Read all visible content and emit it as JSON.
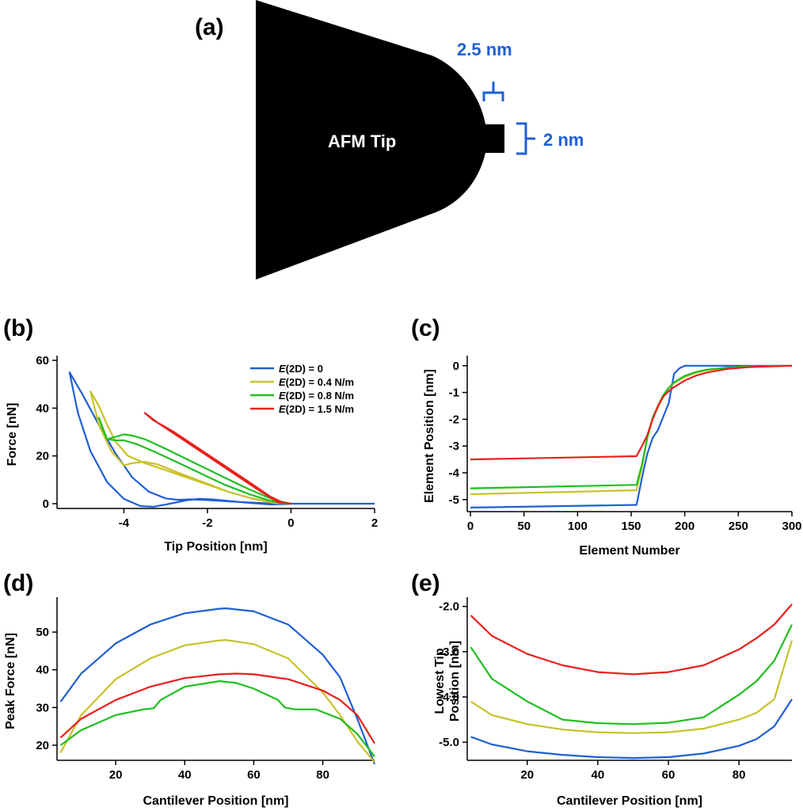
{
  "colors": {
    "blue": "#1f5fd6",
    "yellow": "#c8c22a",
    "green": "#1fbf1f",
    "red": "#e8201c",
    "dim": "#1f5fd6"
  },
  "panel_a": {
    "label": "(a)",
    "tip_label": "AFM Tip",
    "width_label": "2.5 nm",
    "height_label": "2 nm"
  },
  "chart_data": [
    {
      "panel": "(b)",
      "type": "line",
      "xlabel": "Tip Position [nm]",
      "ylabel": "Force [nN]",
      "xlim": [
        -5.6,
        2.0
      ],
      "ylim": [
        -2,
        60
      ],
      "xticks": [
        -4,
        -2,
        0,
        2
      ],
      "xtick_labels": [
        "-4",
        "-2",
        "0",
        "2"
      ],
      "yticks": [
        0,
        20,
        40,
        60
      ],
      "ytick_labels": [
        "0",
        "20",
        "40",
        "60"
      ],
      "legend_position": "top-right",
      "legend": [
        {
          "prefix": "E",
          "text": "(2D) = 0",
          "color": "#1f5fd6"
        },
        {
          "prefix": "E",
          "text": "(2D) = 0.4 N/m",
          "color": "#c8c22a"
        },
        {
          "prefix": "E",
          "text": "(2D) = 0.8 N/m",
          "color": "#1fbf1f"
        },
        {
          "prefix": "E",
          "text": "(2D) = 1.5 N/m",
          "color": "#e8201c"
        }
      ],
      "series": [
        {
          "color": "#1f5fd6",
          "x": [
            2.0,
            1.0,
            0.0,
            -0.2,
            -0.5,
            -0.9,
            -1.4,
            -1.9,
            -2.2,
            -2.5,
            -2.9,
            -3.3,
            -3.6,
            -4.0,
            -4.4,
            -4.8,
            -5.1,
            -5.3,
            -5.0,
            -4.6,
            -4.2,
            -3.8,
            -3.4,
            -3.0,
            -2.7,
            -2.4,
            -2.0,
            -1.5,
            -1.0,
            -0.6,
            -0.3,
            0.0
          ],
          "y": [
            0,
            0,
            0,
            -0.2,
            -0.3,
            0.2,
            1.0,
            1.8,
            2.0,
            1.4,
            0.0,
            -1.3,
            -1.0,
            2.0,
            9.0,
            22.0,
            38.0,
            55.0,
            46.0,
            33.0,
            21.0,
            11.0,
            5.0,
            2.2,
            1.6,
            1.8,
            1.5,
            1.0,
            0.5,
            0.2,
            0.0,
            0.0
          ]
        },
        {
          "color": "#c8c22a",
          "x": [
            0.0,
            -0.4,
            -0.9,
            -1.5,
            -2.1,
            -2.7,
            -3.2,
            -3.5,
            -3.8,
            -4.0,
            -4.3,
            -4.6,
            -4.8,
            -4.6,
            -4.4,
            -4.2,
            -3.9,
            -3.5,
            -3.0,
            -2.5,
            -2.0,
            -1.5,
            -1.0,
            -0.5,
            -0.2,
            0.0
          ],
          "y": [
            0.0,
            0.3,
            2.0,
            5.0,
            9.0,
            13.0,
            16.5,
            17.5,
            17.0,
            16.0,
            22.0,
            33.0,
            47.0,
            41.0,
            33.0,
            26.0,
            20.0,
            17.0,
            14.0,
            11.0,
            8.0,
            5.0,
            2.5,
            0.8,
            0.2,
            0.0
          ]
        },
        {
          "color": "#1fbf1f",
          "x": [
            0.0,
            -0.4,
            -1.0,
            -1.6,
            -2.3,
            -3.0,
            -3.5,
            -3.8,
            -4.0,
            -4.2,
            -4.4,
            -4.6,
            -4.5,
            -4.4,
            -4.2,
            -4.0,
            -3.7,
            -3.3,
            -2.8,
            -2.2,
            -1.6,
            -1.0,
            -0.5,
            -0.2,
            0.0
          ],
          "y": [
            0.0,
            1.5,
            6.0,
            11.0,
            17.0,
            23.0,
            27.0,
            28.5,
            29.0,
            28.0,
            27.0,
            36.0,
            31.0,
            27.0,
            26.5,
            26.5,
            25.0,
            22.0,
            18.0,
            13.0,
            8.0,
            4.0,
            1.2,
            0.2,
            0.0
          ]
        },
        {
          "color": "#e8201c",
          "x": [
            0.0,
            -0.3,
            -0.8,
            -1.4,
            -2.0,
            -2.6,
            -3.2,
            -3.5,
            -3.3,
            -2.8,
            -2.2,
            -1.6,
            -1.0,
            -0.5,
            -0.2,
            0.0
          ],
          "y": [
            0.0,
            0.5,
            6.0,
            13.0,
            20.0,
            27.0,
            34.0,
            38.0,
            35.0,
            30.0,
            23.0,
            16.0,
            9.0,
            3.0,
            0.5,
            0.0
          ]
        }
      ]
    },
    {
      "panel": "(c)",
      "type": "line",
      "xlabel": "Element Number",
      "ylabel": "Element Position [nm]",
      "xlim": [
        -3,
        300
      ],
      "ylim": [
        -5.45,
        0.2
      ],
      "xticks": [
        0,
        50,
        100,
        150,
        200,
        250,
        300
      ],
      "xtick_labels": [
        "0",
        "50",
        "100",
        "150",
        "200",
        "250",
        "300"
      ],
      "yticks": [
        0,
        -1,
        -2,
        -3,
        -4,
        -5
      ],
      "ytick_labels": [
        "0",
        "-1",
        "-2",
        "-3",
        "-4",
        "-5"
      ],
      "series": [
        {
          "color": "#1f5fd6",
          "x": [
            0,
            155,
            160,
            165,
            170,
            175,
            180,
            185,
            190,
            195,
            200,
            205,
            220,
            250,
            300
          ],
          "y": [
            -5.3,
            -5.2,
            -4.2,
            -3.3,
            -2.7,
            -2.4,
            -1.9,
            -1.4,
            -0.3,
            -0.1,
            0,
            0,
            0,
            0,
            0
          ]
        },
        {
          "color": "#c8c22a",
          "x": [
            0,
            155,
            160,
            165,
            170,
            175,
            180,
            185,
            190,
            200,
            210,
            220,
            240,
            260,
            300
          ],
          "y": [
            -4.8,
            -4.65,
            -3.8,
            -2.7,
            -2.0,
            -1.55,
            -1.15,
            -0.85,
            -0.65,
            -0.42,
            -0.27,
            -0.17,
            -0.08,
            -0.03,
            0
          ]
        },
        {
          "color": "#1fbf1f",
          "x": [
            0,
            155,
            160,
            165,
            170,
            175,
            180,
            185,
            190,
            200,
            210,
            220,
            240,
            260,
            300
          ],
          "y": [
            -4.58,
            -4.45,
            -3.7,
            -2.7,
            -1.95,
            -1.5,
            -1.1,
            -0.82,
            -0.62,
            -0.38,
            -0.24,
            -0.15,
            -0.07,
            -0.03,
            0
          ]
        },
        {
          "color": "#e8201c",
          "x": [
            0,
            155,
            160,
            165,
            170,
            175,
            180,
            185,
            190,
            200,
            210,
            220,
            240,
            260,
            300
          ],
          "y": [
            -3.5,
            -3.38,
            -3.0,
            -2.6,
            -2.0,
            -1.5,
            -1.15,
            -0.95,
            -0.8,
            -0.55,
            -0.38,
            -0.26,
            -0.12,
            -0.05,
            0
          ]
        }
      ]
    },
    {
      "panel": "(d)",
      "type": "line",
      "xlabel": "Cantilever Position [nm]",
      "ylabel": "Peak Force [nN]",
      "xlim": [
        3,
        95
      ],
      "ylim": [
        16,
        58
      ],
      "xticks": [
        20,
        40,
        60,
        80
      ],
      "xtick_labels": [
        "20",
        "40",
        "60",
        "80"
      ],
      "yticks": [
        20,
        30,
        40,
        50
      ],
      "ytick_labels": [
        "20",
        "30",
        "40",
        "50"
      ],
      "series": [
        {
          "color": "#1f5fd6",
          "x": [
            4,
            10,
            20,
            30,
            40,
            50,
            52,
            60,
            70,
            80,
            85,
            90,
            95
          ],
          "y": [
            31.5,
            39.0,
            47.0,
            52.0,
            55.0,
            56.2,
            56.3,
            55.5,
            52.0,
            44.0,
            38.0,
            27.0,
            15.0
          ]
        },
        {
          "color": "#c8c22a",
          "x": [
            4,
            10,
            20,
            30,
            40,
            50,
            52,
            60,
            70,
            80,
            85,
            90,
            95
          ],
          "y": [
            18.0,
            28.0,
            37.5,
            43.0,
            46.5,
            47.8,
            47.9,
            46.8,
            43.0,
            34.0,
            28.0,
            21.0,
            15.5
          ]
        },
        {
          "color": "#1fbf1f",
          "x": [
            4,
            10,
            20,
            28,
            31,
            33,
            40,
            50,
            55,
            60,
            67,
            69,
            72,
            78,
            85,
            90,
            95
          ],
          "y": [
            20.0,
            24.0,
            28.0,
            29.5,
            29.8,
            32.0,
            35.5,
            37.0,
            36.5,
            35.0,
            32.0,
            30.0,
            29.5,
            29.5,
            27.0,
            23.0,
            17.0
          ]
        },
        {
          "color": "#e8201c",
          "x": [
            4,
            10,
            20,
            30,
            40,
            50,
            55,
            60,
            70,
            80,
            85,
            90,
            95
          ],
          "y": [
            22.0,
            27.0,
            32.0,
            35.5,
            37.8,
            38.8,
            39.0,
            38.8,
            37.5,
            34.5,
            32.0,
            28.0,
            20.5
          ]
        }
      ]
    },
    {
      "panel": "(e)",
      "type": "line",
      "xlabel": "Cantilever Position [nm]",
      "ylabel": "Lowest Tip Position [nm]",
      "ylabel_lines": [
        "Lowest Tip",
        "Position [nm]"
      ],
      "xlim": [
        3,
        95
      ],
      "ylim": [
        -5.4,
        -1.9
      ],
      "xticks": [
        20,
        40,
        60,
        80
      ],
      "xtick_labels": [
        "20",
        "40",
        "60",
        "80"
      ],
      "yticks": [
        -2.0,
        -3.0,
        -4.0,
        -5.0
      ],
      "ytick_labels": [
        "-2.0",
        "-3.0",
        "-4.0",
        "-5.0"
      ],
      "series": [
        {
          "color": "#e8201c",
          "x": [
            4,
            10,
            20,
            30,
            40,
            50,
            60,
            70,
            80,
            85,
            90,
            95
          ],
          "y": [
            -2.2,
            -2.65,
            -3.05,
            -3.3,
            -3.45,
            -3.5,
            -3.45,
            -3.3,
            -2.95,
            -2.7,
            -2.4,
            -1.95
          ]
        },
        {
          "color": "#1fbf1f",
          "x": [
            4,
            10,
            20,
            30,
            40,
            50,
            60,
            70,
            75,
            80,
            85,
            90,
            95
          ],
          "y": [
            -2.9,
            -3.6,
            -4.1,
            -4.5,
            -4.58,
            -4.6,
            -4.57,
            -4.45,
            -4.2,
            -3.95,
            -3.65,
            -3.2,
            -2.4
          ]
        },
        {
          "color": "#c8c22a",
          "x": [
            4,
            10,
            20,
            30,
            40,
            50,
            60,
            70,
            80,
            85,
            90,
            95
          ],
          "y": [
            -4.1,
            -4.4,
            -4.6,
            -4.72,
            -4.78,
            -4.8,
            -4.78,
            -4.7,
            -4.5,
            -4.35,
            -4.05,
            -2.75
          ]
        },
        {
          "color": "#1f5fd6",
          "x": [
            4,
            10,
            20,
            30,
            40,
            50,
            60,
            70,
            80,
            85,
            90,
            95
          ],
          "y": [
            -4.88,
            -5.05,
            -5.2,
            -5.28,
            -5.33,
            -5.35,
            -5.33,
            -5.25,
            -5.08,
            -4.93,
            -4.65,
            -4.05
          ]
        }
      ]
    }
  ]
}
